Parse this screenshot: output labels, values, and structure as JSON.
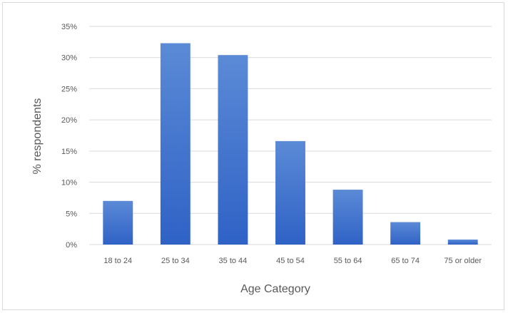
{
  "chart_data": {
    "type": "bar",
    "title": "",
    "xlabel": "Age Category",
    "ylabel": "% respondents",
    "categories": [
      "18 to 24",
      "25 to 34",
      "35 to 44",
      "45 to 54",
      "55 to 64",
      "65 to 74",
      "75 or older"
    ],
    "values": [
      7,
      32.3,
      30.4,
      16.6,
      8.8,
      3.6,
      0.8
    ],
    "ylim": [
      0,
      35
    ],
    "yticks": [
      0,
      5,
      10,
      15,
      20,
      25,
      30,
      35
    ],
    "ytick_labels": [
      "0%",
      "5%",
      "10%",
      "15%",
      "20%",
      "25%",
      "30%",
      "35%"
    ],
    "grid": true,
    "legend": "none",
    "bar_color_top": "#5b8ad6",
    "bar_color_bottom": "#2f62c6",
    "gridline_color": "#d9d9d9"
  }
}
